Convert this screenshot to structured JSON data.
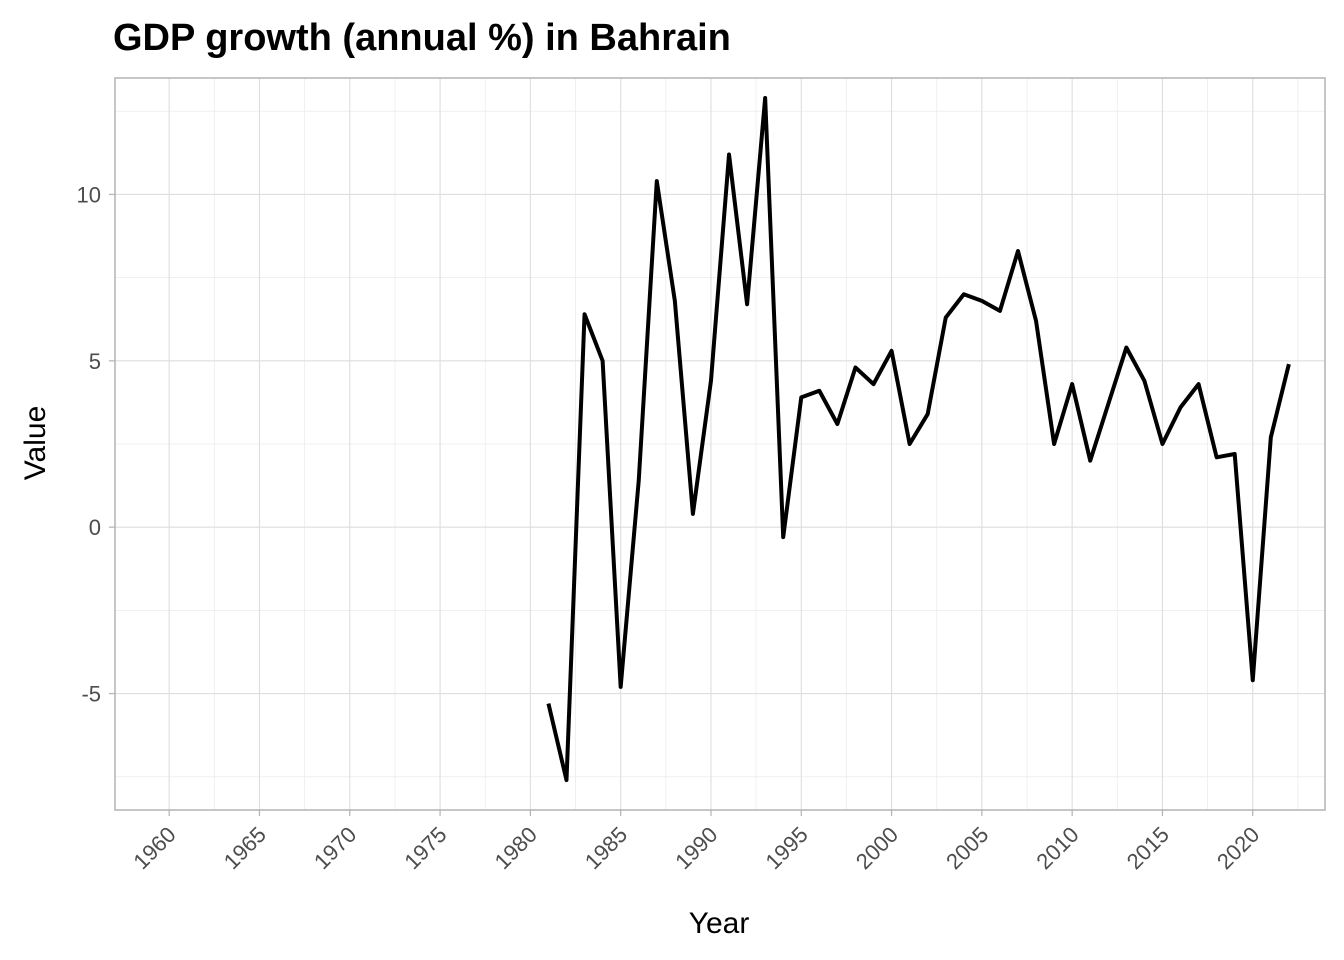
{
  "chart_data": {
    "type": "line",
    "title": "GDP growth (annual %) in Bahrain",
    "xlabel": "Year",
    "ylabel": "Value",
    "xlim": [
      1957,
      2024
    ],
    "ylim": [
      -8.5,
      13.5
    ],
    "x_ticks": [
      1960,
      1965,
      1970,
      1975,
      1980,
      1985,
      1990,
      1995,
      2000,
      2005,
      2010,
      2015,
      2020
    ],
    "x_tick_labels": [
      "1960",
      "1965",
      "1970",
      "1975",
      "1980",
      "1985",
      "1990",
      "1995",
      "2000",
      "2005",
      "2010",
      "2015",
      "2020"
    ],
    "y_ticks": [
      -5,
      0,
      5,
      10
    ],
    "y_tick_labels": [
      "-5",
      "0",
      "5",
      "10"
    ],
    "grid": true,
    "legend": "none",
    "line_color": "#000000",
    "series": [
      {
        "x": [
          1981,
          1982,
          1983,
          1984,
          1985,
          1986,
          1987,
          1988,
          1989,
          1990,
          1991,
          1992,
          1993,
          1994,
          1995,
          1996,
          1997,
          1998,
          1999,
          2000,
          2001,
          2002,
          2003,
          2004,
          2005,
          2006,
          2007,
          2008,
          2009,
          2010,
          2011,
          2012,
          2013,
          2014,
          2015,
          2016,
          2017,
          2018,
          2019,
          2020,
          2021,
          2022
        ],
        "y": [
          -5.3,
          -7.6,
          6.4,
          5.0,
          -4.8,
          1.4,
          10.4,
          6.8,
          0.4,
          4.4,
          11.2,
          6.7,
          12.9,
          -0.3,
          3.9,
          4.1,
          3.1,
          4.8,
          4.3,
          5.3,
          2.5,
          3.4,
          6.3,
          7.0,
          6.8,
          6.5,
          8.3,
          6.2,
          2.5,
          4.3,
          2.0,
          3.7,
          5.4,
          4.4,
          2.5,
          3.6,
          4.3,
          2.1,
          2.2,
          -4.6,
          2.7,
          4.9
        ]
      }
    ]
  }
}
